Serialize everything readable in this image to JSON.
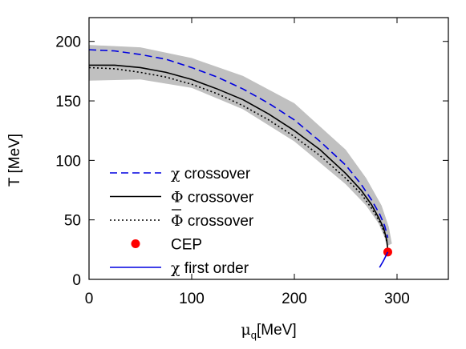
{
  "chart_data": {
    "type": "line",
    "title": "",
    "xlabel_main": "μ",
    "xlabel_sub": "q",
    "xlabel_unit": "[MeV]",
    "ylabel": "T [MeV]",
    "xlim": [
      0,
      350
    ],
    "ylim": [
      0,
      220
    ],
    "xticks": [
      0,
      100,
      200,
      300
    ],
    "yticks": [
      0,
      50,
      100,
      150,
      200
    ],
    "grid": false,
    "legend_position": "bottom-left",
    "band": {
      "color": "#c0c0c0",
      "upper": {
        "x": [
          0,
          50,
          100,
          150,
          200,
          250,
          270,
          285,
          292,
          295
        ],
        "y": [
          197,
          195,
          186,
          171,
          148,
          109,
          85,
          62,
          44,
          30
        ]
      },
      "lower": {
        "x": [
          0,
          50,
          100,
          150,
          200,
          250,
          270,
          282,
          288,
          290
        ],
        "y": [
          167,
          168,
          161,
          143,
          116,
          80,
          62,
          47,
          35,
          28
        ]
      }
    },
    "series": [
      {
        "name": "χ crossover",
        "legend_symbol": "χ",
        "legend_suffix": "crossover",
        "style": "dashed",
        "color": "#0000e0",
        "x": [
          0,
          25,
          50,
          75,
          100,
          125,
          150,
          175,
          200,
          225,
          250,
          265,
          275,
          283,
          288,
          291
        ],
        "y": [
          193,
          192,
          189,
          185,
          178,
          170,
          160,
          148,
          134,
          116,
          96,
          80,
          67,
          55,
          45,
          35
        ]
      },
      {
        "name": "Φ crossover",
        "legend_symbol": "Φ",
        "legend_suffix": "crossover",
        "style": "solid",
        "color": "#000000",
        "x": [
          0,
          25,
          50,
          75,
          100,
          125,
          150,
          175,
          200,
          225,
          250,
          265,
          275,
          282,
          287,
          290,
          291
        ],
        "y": [
          180,
          180,
          178,
          174,
          168,
          160,
          151,
          139,
          125,
          109,
          89,
          75,
          63,
          52,
          43,
          33,
          25
        ]
      },
      {
        "name": "Φ̄ crossover",
        "legend_symbol": "Φ",
        "legend_suffix": "crossover",
        "style": "dotted",
        "color": "#000000",
        "x": [
          0,
          25,
          50,
          75,
          100,
          125,
          150,
          175,
          200,
          225,
          250,
          265,
          275,
          282,
          287,
          290
        ],
        "y": [
          178,
          177,
          174,
          170,
          164,
          156,
          146,
          134,
          120,
          104,
          85,
          72,
          60,
          50,
          41,
          32
        ]
      },
      {
        "name": "CEP",
        "legend_symbol": "",
        "legend_suffix": "CEP",
        "style": "point",
        "color": "#ff0000",
        "x": [
          291
        ],
        "y": [
          23
        ]
      },
      {
        "name": "χ first order",
        "legend_symbol": "χ",
        "legend_suffix": "first order",
        "style": "solid",
        "color": "#0000e0",
        "x": [
          283,
          287,
          291
        ],
        "y": [
          10,
          16,
          23
        ]
      }
    ]
  }
}
